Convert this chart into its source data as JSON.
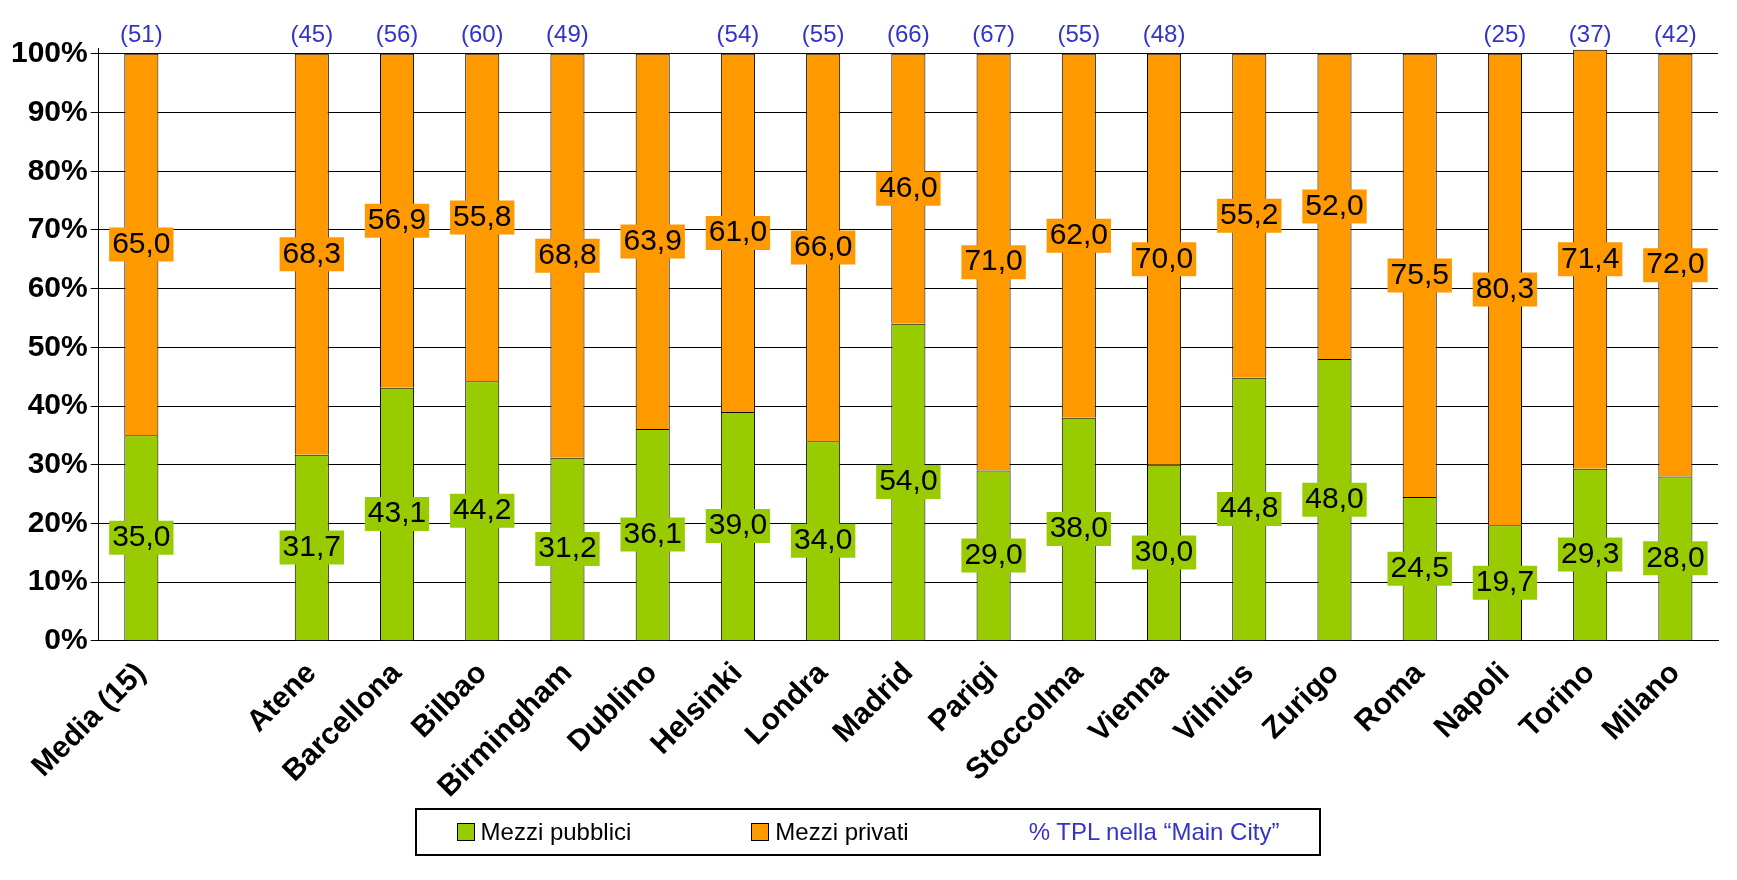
{
  "chart_data": {
    "type": "bar",
    "stacked": true,
    "categories": [
      "Media (15)",
      null,
      "Atene",
      "Barcellona",
      "Bilbao",
      "Birmingham",
      "Dublino",
      "Helsinki",
      "Londra",
      "Madrid",
      "Parigi",
      "Stoccolma",
      "Vienna",
      "Vilnius",
      "Zurigo",
      "Roma",
      "Napoli",
      "Torino",
      "Milano"
    ],
    "series": [
      {
        "name": "Mezzi pubblici",
        "color": "#99cc00",
        "values": [
          35.0,
          null,
          31.7,
          43.1,
          44.2,
          31.2,
          36.1,
          39.0,
          34.0,
          54.0,
          29.0,
          38.0,
          30.0,
          44.8,
          48.0,
          24.5,
          19.7,
          29.3,
          28.0
        ],
        "value_labels": [
          "35,0",
          null,
          "31,7",
          "43,1",
          "44,2",
          "31,2",
          "36,1",
          "39,0",
          "34,0",
          "54,0",
          "29,0",
          "38,0",
          "30,0",
          "44,8",
          "48,0",
          "24,5",
          "19,7",
          "29,3",
          "28,0"
        ]
      },
      {
        "name": "Mezzi privati",
        "color": "#ff9900",
        "values": [
          65.0,
          null,
          68.3,
          56.9,
          55.8,
          68.8,
          63.9,
          61.0,
          66.0,
          46.0,
          71.0,
          62.0,
          70.0,
          55.2,
          52.0,
          75.5,
          80.3,
          71.4,
          72.0
        ],
        "value_labels": [
          "65,0",
          null,
          "68,3",
          "56,9",
          "55,8",
          "68,8",
          "63,9",
          "61,0",
          "66,0",
          "46,0",
          "71,0",
          "62,0",
          "70,0",
          "55,2",
          "52,0",
          "75,5",
          "80,3",
          "71,4",
          "72,0"
        ]
      }
    ],
    "ylim": [
      0,
      101
    ],
    "yticks": [
      {
        "value": 0,
        "label": "0%"
      },
      {
        "value": 10,
        "label": "10%"
      },
      {
        "value": 20,
        "label": "20%"
      },
      {
        "value": 30,
        "label": "30%"
      },
      {
        "value": 40,
        "label": "40%"
      },
      {
        "value": 50,
        "label": "50%"
      },
      {
        "value": 60,
        "label": "60%"
      },
      {
        "value": 70,
        "label": "70%"
      },
      {
        "value": 80,
        "label": "80%"
      },
      {
        "value": 90,
        "label": "90%"
      },
      {
        "value": 100,
        "label": "100%"
      }
    ],
    "grid": "y",
    "legend": "bottom",
    "annotations": [
      {
        "text": "(51)",
        "x": "Media (15)",
        "y": 100
      },
      {
        "text": "(45)",
        "x": "Atene",
        "y": 100
      },
      {
        "text": "(56)",
        "x": "Barcellona",
        "y": 100
      },
      {
        "text": "(60)",
        "x": "Bilbao",
        "y": 100
      },
      {
        "text": "(49)",
        "x": "Birmingham",
        "y": 100
      },
      {
        "text": "(54)",
        "x": "Helsinki",
        "y": 100
      },
      {
        "text": "(55)",
        "x": "Londra",
        "y": 100
      },
      {
        "text": "(66)",
        "x": "Madrid",
        "y": 100
      },
      {
        "text": "(67)",
        "x": "Parigi",
        "y": 100
      },
      {
        "text": "(55)",
        "x": "Stoccolma",
        "y": 100
      },
      {
        "text": "(48)",
        "x": "Vienna",
        "y": 100
      },
      {
        "text": "(25)",
        "x": "Napoli",
        "y": 100
      },
      {
        "text": "(37)",
        "x": "Torino",
        "y": 100
      },
      {
        "text": "(42)",
        "x": "Milano",
        "y": 100
      },
      "% TPL nella “Main City”"
    ]
  }
}
